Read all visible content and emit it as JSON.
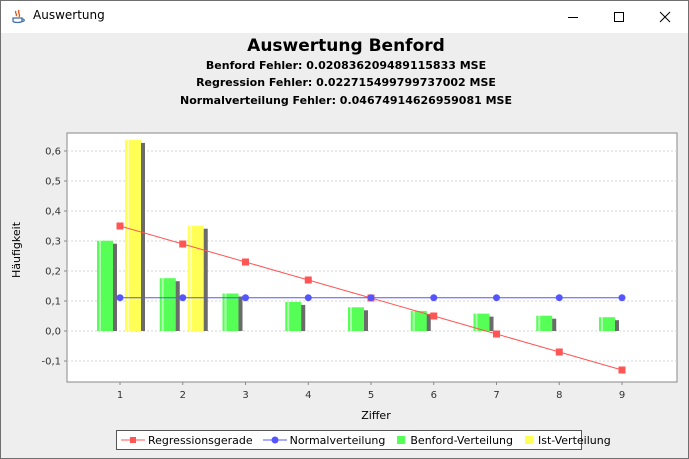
{
  "window": {
    "title": "Auswertung",
    "icons": [
      "java-app-icon",
      "minimize-icon",
      "maximize-icon",
      "close-icon"
    ]
  },
  "chart_data": {
    "type": "bar",
    "title": "Auswertung Benford",
    "subtitles": [
      "Benford Fehler: 0.020836209489115833 MSE",
      "Regression Fehler: 0.022715499799737002 MSE",
      "Normalverteilung Fehler: 0.04674914626959081 MSE"
    ],
    "xlabel": "Ziffer",
    "ylabel": "Häufigkeit",
    "categories": [
      "1",
      "2",
      "3",
      "4",
      "5",
      "6",
      "7",
      "8",
      "9"
    ],
    "ylim": [
      -0.17,
      0.66
    ],
    "yticks": [
      {
        "value": -0.1,
        "label": "-0,1"
      },
      {
        "value": 0.0,
        "label": "0,0"
      },
      {
        "value": 0.1,
        "label": "0,1"
      },
      {
        "value": 0.2,
        "label": "0,2"
      },
      {
        "value": 0.3,
        "label": "0,3"
      },
      {
        "value": 0.4,
        "label": "0,4"
      },
      {
        "value": 0.5,
        "label": "0,5"
      },
      {
        "value": 0.6,
        "label": "0,6"
      }
    ],
    "grid": true,
    "legend_position": "bottom",
    "bar_series": [
      {
        "name": "Benford-Verteilung",
        "color": "#55ff55",
        "values": [
          0.301,
          0.176,
          0.125,
          0.097,
          0.079,
          0.067,
          0.058,
          0.051,
          0.046
        ]
      },
      {
        "name": "Ist-Verteilung",
        "color": "#ffff55",
        "values": [
          0.637,
          0.351,
          0.0,
          0.0,
          0.0,
          0.0,
          0.0,
          0.0,
          0.0
        ]
      }
    ],
    "line_series": [
      {
        "name": "Regressionsgerade",
        "color": "#ff5555",
        "marker": "square",
        "values": [
          0.35,
          0.29,
          0.23,
          0.17,
          0.11,
          0.05,
          -0.01,
          -0.07,
          -0.13
        ]
      },
      {
        "name": "Normalverteilung",
        "color": "#5555ff",
        "marker": "circle",
        "values": [
          0.111,
          0.111,
          0.111,
          0.111,
          0.111,
          0.111,
          0.111,
          0.111,
          0.111
        ]
      }
    ],
    "legend_order": [
      "Regressionsgerade",
      "Normalverteilung",
      "Benford-Verteilung",
      "Ist-Verteilung"
    ]
  }
}
